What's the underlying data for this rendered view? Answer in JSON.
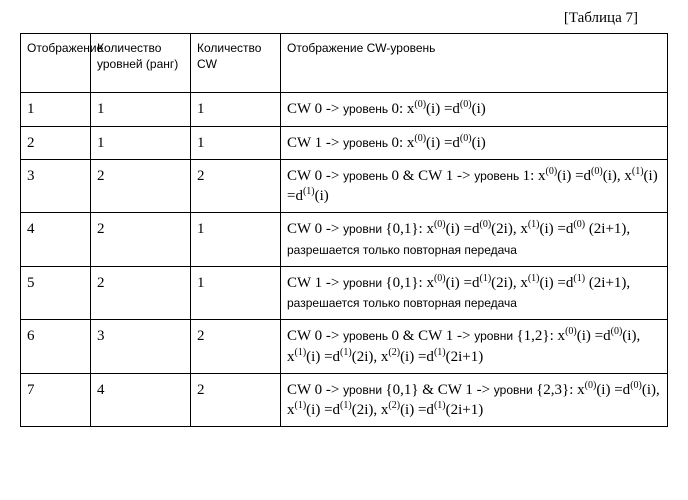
{
  "caption": "[Таблица 7]",
  "headers": {
    "c1": "Отображение",
    "c2": "Количество уровней (ранг)",
    "c3": "Количество CW",
    "c4": "Отображение CW-уровень"
  },
  "rows": [
    {
      "c1": "1",
      "c2": "1",
      "c3": "1",
      "parts": [
        "CW 0 -> ",
        "уровень ",
        "0: x",
        "(0)",
        "(i) =d",
        "(0)",
        "(i)"
      ]
    },
    {
      "c1": "2",
      "c2": "1",
      "c3": "1",
      "parts": [
        "CW 1 -> ",
        "уровень ",
        "0: x",
        "(0)",
        "(i) =d",
        "(0)",
        "(i)"
      ]
    },
    {
      "c1": "3",
      "c2": "2",
      "c3": "2",
      "parts": [
        "CW 0 -> ",
        "уровень ",
        "0 & CW 1 -> ",
        "уровень ",
        "1: x",
        "(0)",
        "(i) =d",
        "(0)",
        "(i), x",
        "(1)",
        "(i) =d",
        "(1)",
        "(i)"
      ]
    },
    {
      "c1": "4",
      "c2": "2",
      "c3": "1",
      "parts": [
        "CW 0 -> ",
        " уровни ",
        " {0,1}: x",
        "(0)",
        "(i) =d",
        "(0)",
        "(2i), x",
        "(1)",
        "(i) =d",
        "(0)",
        " (2i+1), ",
        " разрешается только повторная передача",
        ""
      ]
    },
    {
      "c1": "5",
      "c2": "2",
      "c3": "1",
      "parts": [
        "CW 1 -> ",
        " уровни ",
        " {0,1}: x",
        "(0)",
        "(i) =d",
        "(1)",
        "(2i), x",
        "(1)",
        "(i) =d",
        "(1)",
        " (2i+1), ",
        " разрешается только повторная передача",
        ""
      ]
    },
    {
      "c1": "6",
      "c2": "3",
      "c3": "2",
      "parts": [
        "CW 0 -> ",
        "уровень ",
        "0 & CW 1 -> ",
        " уровни ",
        " {1,2}: x",
        "(0)",
        "(i) =d",
        "(0)",
        "(i), x",
        "(1)",
        "(i) =d",
        "(1)",
        "(2i), x",
        "(2)",
        "(i) =d",
        "(1)",
        "(2i+1)"
      ]
    },
    {
      "c1": "7",
      "c2": "4",
      "c3": "2",
      "parts": [
        "CW 0 -> ",
        " уровни ",
        " {0,1} & CW 1 -> ",
        " уровни ",
        " {2,3}: x",
        "(0)",
        "(i) =d",
        "(0)",
        "(i), x",
        "(1)",
        "(i) =d",
        "(1)",
        "(2i), x",
        "(2)",
        "(i) =d",
        "(1)",
        "(2i+1)"
      ]
    }
  ]
}
